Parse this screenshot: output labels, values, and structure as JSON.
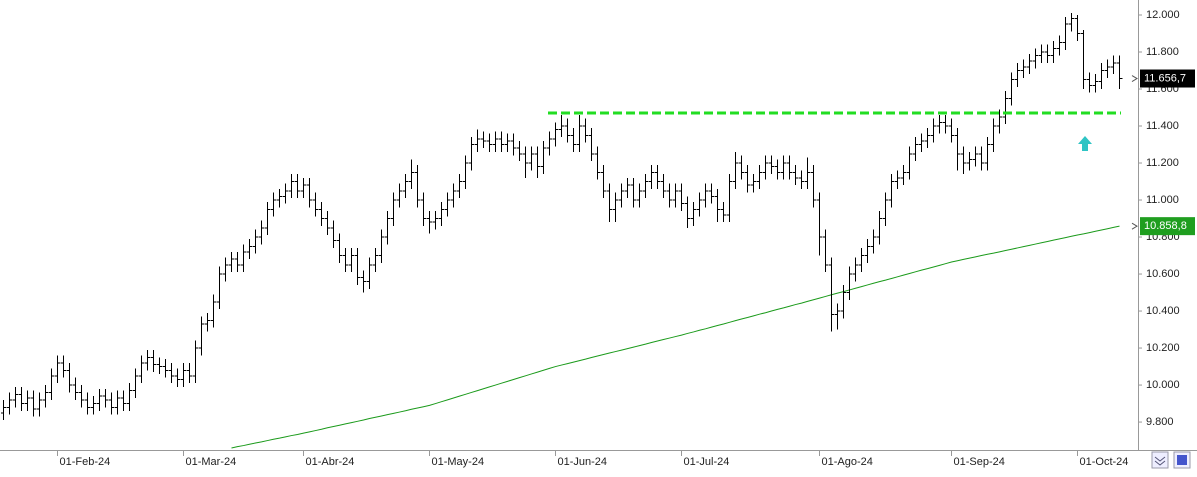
{
  "chart_data": {
    "type": "ohlc",
    "bar_color": "#000000",
    "categories": [
      null,
      null,
      null,
      null,
      null,
      null,
      null,
      null,
      null,
      "01-Feb-24",
      null,
      null,
      null,
      null,
      null,
      null,
      null,
      null,
      null,
      null,
      null,
      null,
      null,
      null,
      null,
      null,
      null,
      null,
      null,
      null,
      "01-Mar-24",
      null,
      null,
      null,
      null,
      null,
      null,
      null,
      null,
      null,
      null,
      null,
      null,
      null,
      null,
      null,
      null,
      null,
      null,
      null,
      "01-Abr-24",
      null,
      null,
      null,
      null,
      null,
      null,
      null,
      null,
      null,
      null,
      null,
      null,
      null,
      null,
      null,
      null,
      null,
      null,
      null,
      null,
      "01-May-24",
      null,
      null,
      null,
      null,
      null,
      null,
      null,
      null,
      null,
      null,
      null,
      null,
      null,
      null,
      null,
      null,
      null,
      null,
      null,
      null,
      "01-Jun-24",
      null,
      null,
      null,
      null,
      null,
      null,
      null,
      null,
      null,
      null,
      null,
      null,
      null,
      null,
      null,
      null,
      null,
      null,
      null,
      null,
      "01-Jul-24",
      null,
      null,
      null,
      null,
      null,
      null,
      null,
      null,
      null,
      null,
      null,
      null,
      null,
      null,
      null,
      null,
      null,
      null,
      null,
      null,
      null,
      null,
      "01-Ago-24",
      null,
      null,
      null,
      null,
      null,
      null,
      null,
      null,
      null,
      null,
      null,
      null,
      null,
      null,
      null,
      null,
      null,
      null,
      null,
      null,
      null,
      "01-Sep-24",
      null,
      null,
      null,
      null,
      null,
      null,
      null,
      null,
      null,
      null,
      null,
      null,
      null,
      null,
      null,
      null,
      null,
      null,
      null,
      null,
      "01-Oct-24",
      null,
      null,
      null,
      null,
      null,
      null,
      null
    ],
    "open": [
      9850,
      9880,
      9920,
      9950,
      9900,
      9930,
      9870,
      9920,
      9960,
      10050,
      10120,
      10080,
      10000,
      9960,
      9920,
      9880,
      9900,
      9940,
      9920,
      9880,
      9930,
      9900,
      9970,
      10050,
      10120,
      10150,
      10110,
      10100,
      10080,
      10050,
      10030,
      10080,
      10050,
      10200,
      10330,
      10350,
      10450,
      10600,
      10650,
      10680,
      10650,
      10720,
      10750,
      10800,
      10850,
      10950,
      11000,
      11020,
      11050,
      11100,
      11050,
      11080,
      11000,
      10950,
      10900,
      10850,
      10780,
      10700,
      10650,
      10700,
      10580,
      10560,
      10650,
      10700,
      10800,
      10900,
      11000,
      11050,
      11100,
      11150,
      11000,
      10900,
      10880,
      10900,
      10950,
      11000,
      11050,
      11100,
      11200,
      11300,
      11330,
      11320,
      11300,
      11330,
      11300,
      11320,
      11280,
      11250,
      11200,
      11250,
      11180,
      11280,
      11330,
      11380,
      11400,
      11350,
      11300,
      11400,
      11350,
      11250,
      11150,
      11050,
      10950,
      11000,
      11050,
      11080,
      11000,
      11050,
      11100,
      11150,
      11100,
      11050,
      11000,
      11050,
      10980,
      10900,
      10950,
      11000,
      11050,
      11020,
      10950,
      10920,
      11100,
      11200,
      11150,
      11080,
      11100,
      11150,
      11200,
      11180,
      11150,
      11200,
      11150,
      11120,
      11100,
      11150,
      11000,
      10800,
      10650,
      10380,
      10400,
      10500,
      10600,
      10650,
      10700,
      10750,
      10800,
      10900,
      11000,
      11100,
      11120,
      11150,
      11250,
      11300,
      11320,
      11350,
      11400,
      11420,
      11400,
      11350,
      11250,
      11200,
      11220,
      11250,
      11200,
      11300,
      11400,
      11450,
      11550,
      11650,
      11700,
      11720,
      11750,
      11780,
      11800,
      11780,
      11820,
      11850,
      11950,
      11980,
      11900,
      11650,
      11620,
      11640,
      11700,
      11720,
      11740
    ],
    "high": [
      9920,
      9960,
      9990,
      9990,
      9970,
      9970,
      9960,
      10000,
      10090,
      10160,
      10160,
      10120,
      10040,
      10000,
      9960,
      9940,
      9980,
      9980,
      9960,
      9970,
      9970,
      10010,
      10090,
      10160,
      10190,
      10190,
      10150,
      10140,
      10120,
      10090,
      10120,
      10120,
      10240,
      10370,
      10390,
      10490,
      10640,
      10690,
      10720,
      10720,
      10760,
      10790,
      10840,
      10890,
      10990,
      11040,
      11060,
      11090,
      11140,
      11140,
      11120,
      11120,
      11040,
      10990,
      10940,
      10890,
      10820,
      10740,
      10740,
      10740,
      10620,
      10690,
      10740,
      10840,
      10940,
      11040,
      11090,
      11140,
      11220,
      11190,
      11040,
      10940,
      10940,
      10990,
      11040,
      11090,
      11140,
      11240,
      11340,
      11380,
      11370,
      11360,
      11370,
      11370,
      11360,
      11360,
      11320,
      11290,
      11290,
      11290,
      11320,
      11370,
      11420,
      11460,
      11440,
      11390,
      11460,
      11440,
      11390,
      11290,
      11190,
      11090,
      11040,
      11090,
      11120,
      11120,
      11090,
      11140,
      11190,
      11190,
      11140,
      11090,
      11090,
      11090,
      11020,
      10990,
      11040,
      11090,
      11090,
      11060,
      10990,
      11140,
      11260,
      11240,
      11190,
      11140,
      11190,
      11240,
      11240,
      11220,
      11240,
      11240,
      11190,
      11160,
      11230,
      11190,
      11040,
      10840,
      10690,
      10440,
      10540,
      10640,
      10690,
      10740,
      10790,
      10840,
      10940,
      11040,
      11140,
      11160,
      11190,
      11290,
      11340,
      11360,
      11390,
      11440,
      11460,
      11460,
      11440,
      11390,
      11290,
      11260,
      11290,
      11290,
      11340,
      11440,
      11490,
      11590,
      11690,
      11740,
      11760,
      11790,
      11820,
      11840,
      11840,
      11860,
      11890,
      11990,
      12010,
      12000,
      11920,
      11690,
      11680,
      11740,
      11760,
      11780,
      11780
    ],
    "low": [
      9810,
      9840,
      9880,
      9860,
      9860,
      9830,
      9830,
      9880,
      9920,
      10010,
      10040,
      9960,
      9920,
      9880,
      9840,
      9840,
      9860,
      9880,
      9840,
      9840,
      9860,
      9860,
      9930,
      10010,
      10080,
      10070,
      10060,
      10040,
      10010,
      9990,
      9990,
      10010,
      10010,
      10160,
      10290,
      10310,
      10410,
      10560,
      10610,
      10610,
      10610,
      10680,
      10710,
      10760,
      10810,
      10910,
      10960,
      10980,
      11010,
      11010,
      11010,
      10960,
      10910,
      10860,
      10810,
      10740,
      10660,
      10610,
      10610,
      10540,
      10500,
      10520,
      10610,
      10660,
      10760,
      10860,
      10960,
      11010,
      11060,
      10960,
      10860,
      10820,
      10840,
      10860,
      10910,
      10960,
      11010,
      11060,
      11160,
      11260,
      11280,
      11260,
      11260,
      11260,
      11260,
      11240,
      11210,
      11120,
      11160,
      11120,
      11140,
      11240,
      11290,
      11340,
      11310,
      11260,
      11260,
      11310,
      11210,
      11110,
      11010,
      10880,
      10880,
      10960,
      11010,
      10960,
      10960,
      11010,
      11060,
      11060,
      11010,
      10960,
      10960,
      10940,
      10850,
      10860,
      10910,
      10960,
      10980,
      10880,
      10880,
      10880,
      11060,
      11110,
      11040,
      11040,
      11060,
      11110,
      11140,
      11110,
      11110,
      11110,
      11080,
      11060,
      11060,
      10960,
      10700,
      10610,
      10290,
      10300,
      10360,
      10460,
      10560,
      10610,
      10660,
      10710,
      10760,
      10860,
      10960,
      11060,
      11080,
      11110,
      11210,
      11260,
      11280,
      11310,
      11360,
      11360,
      11310,
      11160,
      11140,
      11160,
      11180,
      11160,
      11160,
      11260,
      11360,
      11410,
      11510,
      11610,
      11660,
      11680,
      11710,
      11740,
      11740,
      11740,
      11780,
      11810,
      11910,
      11860,
      11600,
      11580,
      11580,
      11600,
      11660,
      11680,
      11600
    ],
    "close": [
      9880,
      9920,
      9950,
      9900,
      9930,
      9870,
      9920,
      9960,
      10050,
      10120,
      10080,
      10000,
      9960,
      9920,
      9880,
      9900,
      9940,
      9920,
      9880,
      9930,
      9900,
      9970,
      10050,
      10120,
      10150,
      10110,
      10100,
      10080,
      10050,
      10030,
      10080,
      10050,
      10200,
      10330,
      10350,
      10450,
      10600,
      10650,
      10680,
      10650,
      10720,
      10750,
      10800,
      10850,
      10950,
      11000,
      11020,
      11050,
      11100,
      11050,
      11080,
      11000,
      10950,
      10900,
      10850,
      10780,
      10700,
      10650,
      10700,
      10580,
      10560,
      10650,
      10700,
      10800,
      10900,
      11000,
      11050,
      11100,
      11150,
      11000,
      10900,
      10880,
      10900,
      10950,
      11000,
      11050,
      11100,
      11200,
      11300,
      11330,
      11320,
      11300,
      11330,
      11300,
      11320,
      11280,
      11250,
      11200,
      11250,
      11180,
      11280,
      11330,
      11380,
      11400,
      11350,
      11300,
      11400,
      11350,
      11250,
      11150,
      11050,
      10950,
      11000,
      11050,
      11080,
      11000,
      11050,
      11100,
      11150,
      11100,
      11050,
      11000,
      11050,
      10980,
      10900,
      10950,
      11000,
      11050,
      11020,
      10950,
      10920,
      11100,
      11200,
      11150,
      11080,
      11100,
      11150,
      11200,
      11180,
      11150,
      11200,
      11150,
      11120,
      11100,
      11150,
      11000,
      10800,
      10650,
      10380,
      10400,
      10500,
      10600,
      10650,
      10700,
      10750,
      10800,
      10900,
      11000,
      11100,
      11120,
      11150,
      11250,
      11300,
      11320,
      11350,
      11400,
      11420,
      11400,
      11350,
      11250,
      11200,
      11220,
      11250,
      11200,
      11300,
      11400,
      11450,
      11550,
      11650,
      11700,
      11720,
      11750,
      11780,
      11800,
      11780,
      11820,
      11850,
      11950,
      11980,
      11900,
      11650,
      11620,
      11640,
      11700,
      11720,
      11740,
      11656.7
    ],
    "lines": [
      {
        "color": "#1a9a1a",
        "values": [
          null,
          null,
          null,
          null,
          null,
          null,
          null,
          null,
          null,
          null,
          null,
          null,
          null,
          null,
          null,
          null,
          null,
          null,
          null,
          null,
          null,
          null,
          null,
          null,
          null,
          null,
          null,
          null,
          null,
          null,
          null,
          null,
          null,
          null,
          null,
          null,
          null,
          null,
          9660,
          9667,
          9673,
          9680,
          9687,
          9693,
          9700,
          9707,
          9713,
          9720,
          9727,
          9733,
          9740,
          9747,
          9754,
          9761,
          9769,
          9776,
          9783,
          9790,
          9797,
          9804,
          9811,
          9819,
          9826,
          9833,
          9840,
          9847,
          9854,
          9861,
          9869,
          9876,
          9883,
          9890,
          9900,
          9910,
          9920,
          9930,
          9940,
          9950,
          9960,
          9970,
          9980,
          9990,
          10000,
          10010,
          10020,
          10030,
          10040,
          10050,
          10060,
          10070,
          10080,
          10090,
          10100,
          10108,
          10116,
          10124,
          10132,
          10140,
          10149,
          10157,
          10165,
          10173,
          10181,
          10189,
          10197,
          10205,
          10213,
          10221,
          10230,
          10238,
          10246,
          10254,
          10262,
          10270,
          10279,
          10287,
          10296,
          10304,
          10313,
          10322,
          10330,
          10339,
          10348,
          10357,
          10365,
          10374,
          10383,
          10391,
          10400,
          10409,
          10417,
          10426,
          10435,
          10443,
          10452,
          10461,
          10470,
          10479,
          10488,
          10497,
          10505,
          10514,
          10523,
          10532,
          10541,
          10550,
          10559,
          10567,
          10576,
          10585,
          10594,
          10603,
          10612,
          10621,
          10629,
          10638,
          10647,
          10656,
          10665,
          10672,
          10679,
          10686,
          10693,
          10700,
          10707,
          10713,
          10720,
          10727,
          10734,
          10741,
          10748,
          10755,
          10762,
          10769,
          10776,
          10783,
          10790,
          10797,
          10804,
          10811,
          10817,
          10824,
          10831,
          10838,
          10845,
          10852,
          10858.8
        ]
      }
    ],
    "hline": {
      "value": 11470,
      "color": "#22dd22"
    },
    "price_labels": [
      {
        "value": 11656.7,
        "label": "11.656,7",
        "color": "#000000"
      },
      {
        "value": 10858.8,
        "label": "10.858,8",
        "color": "#1f9e1f"
      }
    ],
    "ylim": [
      9649,
      12081
    ],
    "yticks": [
      {
        "value": 9800,
        "label": "9.800"
      },
      {
        "value": 10000,
        "label": "10.000"
      },
      {
        "value": 10200,
        "label": "10.200"
      },
      {
        "value": 10400,
        "label": "10.400"
      },
      {
        "value": 10600,
        "label": "10.600"
      },
      {
        "value": 10800,
        "label": "10.800"
      },
      {
        "value": 11000,
        "label": "11.000"
      },
      {
        "value": 11200,
        "label": "11.200"
      },
      {
        "value": 11400,
        "label": "11.400"
      },
      {
        "value": 11600,
        "label": "11.600"
      },
      {
        "value": 11800,
        "label": "11.800"
      },
      {
        "value": 12000,
        "label": "12.000"
      }
    ]
  }
}
